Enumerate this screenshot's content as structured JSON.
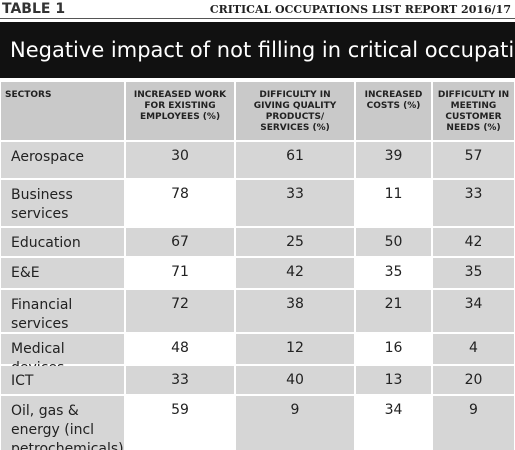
{
  "header": {
    "label": "TABLE 1",
    "report": "CRITICAL OCCUPATIONS LIST REPORT 2016/17",
    "title": "Negative impact of not filling in critical occupations"
  },
  "table": {
    "columns": [
      "SECTORS",
      "INCREASED WORK FOR EXISTING EMPLOYEES (%)",
      "DIFFICULTY IN GIVING QUALITY PRODUCTS/ SERVICES (%)",
      "INCREASED COSTS (%)",
      "DIFFICULTY IN MEETING CUSTOMER NEEDS (%)"
    ],
    "rows": [
      [
        "Aerospace",
        30,
        61,
        39,
        57
      ],
      [
        "Business services",
        78,
        33,
        11,
        33
      ],
      [
        "Education",
        67,
        25,
        50,
        42
      ],
      [
        "E&E",
        71,
        42,
        35,
        35
      ],
      [
        "Financial services",
        72,
        38,
        21,
        34
      ],
      [
        "Medical devices",
        48,
        12,
        16,
        4
      ],
      [
        "ICT",
        33,
        40,
        13,
        20
      ],
      [
        "Oil, gas & energy (incl petrochemicals)",
        59,
        9,
        34,
        9
      ]
    ]
  }
}
